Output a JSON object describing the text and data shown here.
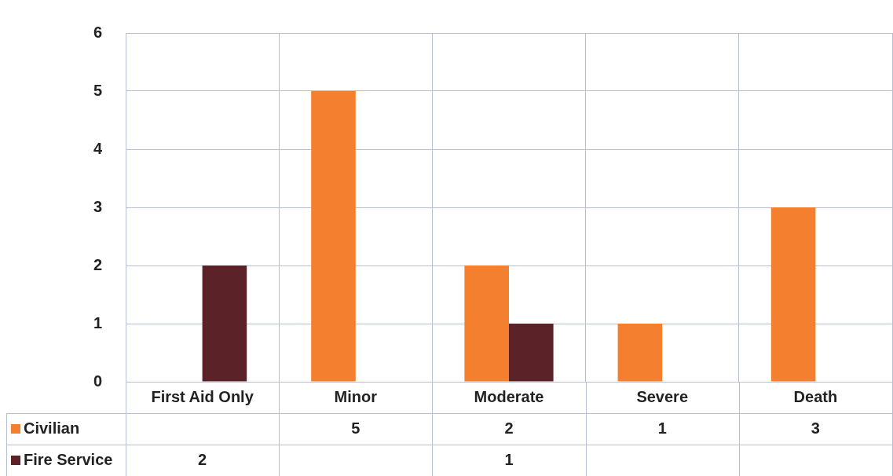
{
  "chart_data": {
    "type": "bar",
    "categories": [
      "First Aid Only",
      "Minor",
      "Moderate",
      "Severe",
      "Death"
    ],
    "series": [
      {
        "name": "Civilian",
        "color": "#f47f2e",
        "values": [
          null,
          5,
          2,
          1,
          3
        ]
      },
      {
        "name": "Fire Service",
        "color": "#5b2328",
        "values": [
          2,
          null,
          1,
          null,
          null
        ]
      }
    ],
    "ylim": [
      0,
      6
    ],
    "yticks": [
      0,
      1,
      2,
      3,
      4,
      5,
      6
    ],
    "grid": true,
    "legend": "bottom",
    "data_labels": true
  }
}
